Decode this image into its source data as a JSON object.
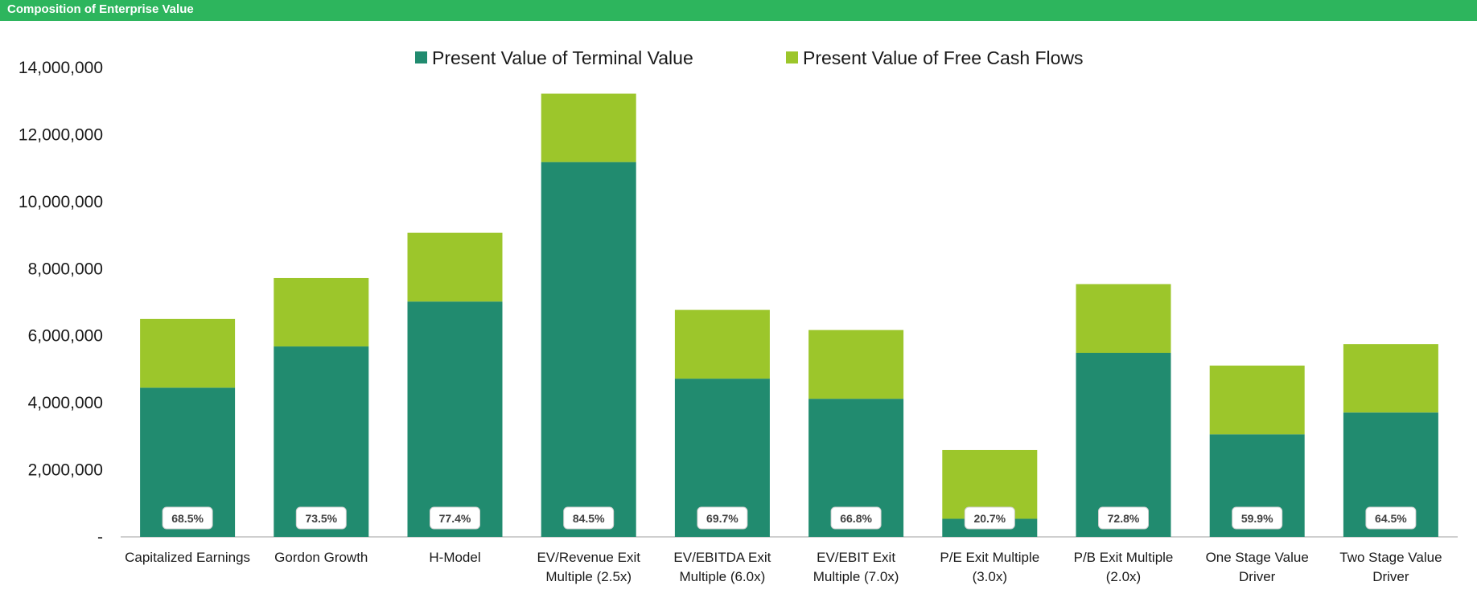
{
  "header": {
    "title": "Composition of Enterprise Value"
  },
  "colors": {
    "header": "#2db55d",
    "terminal": "#218b6f",
    "fcf": "#9cc62b"
  },
  "chart_data": {
    "type": "bar",
    "stacked": true,
    "title": "",
    "xlabel": "",
    "ylabel": "",
    "ylim": [
      0,
      14000000
    ],
    "yticks": [
      0,
      2000000,
      4000000,
      6000000,
      8000000,
      10000000,
      12000000,
      14000000
    ],
    "ytick_labels": [
      "-",
      "2,000,000",
      "4,000,000",
      "6,000,000",
      "8,000,000",
      "10,000,000",
      "12,000,000",
      "14,000,000"
    ],
    "grid": false,
    "legend_position": "top",
    "categories": [
      [
        "Capitalized Earnings"
      ],
      [
        "Gordon Growth"
      ],
      [
        "H-Model"
      ],
      [
        "EV/Revenue Exit",
        "Multiple (2.5x)"
      ],
      [
        "EV/EBITDA Exit",
        "Multiple (6.0x)"
      ],
      [
        "EV/EBIT Exit",
        "Multiple (7.0x)"
      ],
      [
        "P/E Exit Multiple",
        "(3.0x)"
      ],
      [
        "P/B Exit Multiple",
        "(2.0x)"
      ],
      [
        "One Stage Value",
        "Driver"
      ],
      [
        "Two Stage Value",
        "Driver"
      ]
    ],
    "series": [
      {
        "name": "Present Value of Terminal Value",
        "color": "#218b6f",
        "values": [
          4450000,
          5680000,
          7020000,
          11180000,
          4720000,
          4120000,
          540000,
          5490000,
          3060000,
          3710000
        ]
      },
      {
        "name": "Present Value of Free Cash Flows",
        "color": "#9cc62b",
        "values": [
          2050000,
          2040000,
          2050000,
          2040000,
          2050000,
          2050000,
          2050000,
          2050000,
          2050000,
          2040000
        ]
      }
    ],
    "data_labels": [
      "68.5%",
      "73.5%",
      "77.4%",
      "84.5%",
      "69.7%",
      "66.8%",
      "20.7%",
      "72.8%",
      "59.9%",
      "64.5%"
    ]
  }
}
